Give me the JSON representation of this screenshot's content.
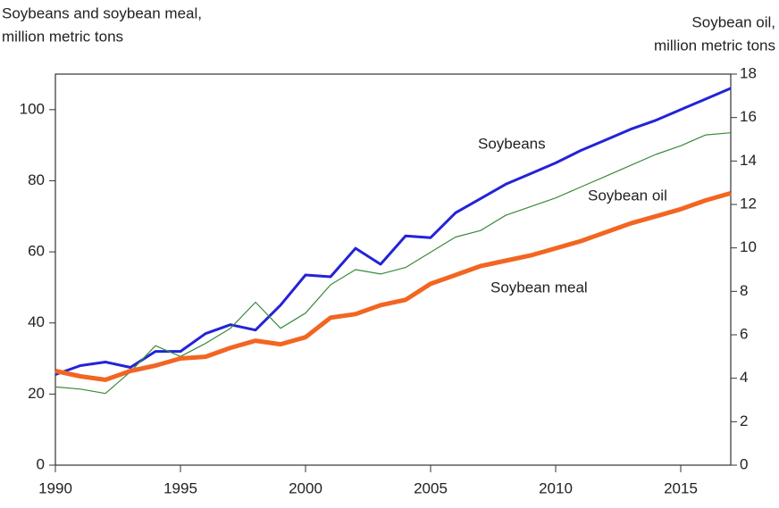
{
  "chart_data": {
    "type": "line",
    "y_label": [
      "Soybeans and soybean meal,",
      "million metric tons"
    ],
    "y2_label": [
      "Soybean oil,",
      "million metric tons"
    ],
    "x": [
      1990,
      1991,
      1992,
      1993,
      1994,
      1995,
      1996,
      1997,
      1998,
      1999,
      2000,
      2001,
      2002,
      2003,
      2004,
      2005,
      2006,
      2007,
      2008,
      2009,
      2010,
      2011,
      2012,
      2013,
      2014,
      2015,
      2016,
      2017
    ],
    "xlim": [
      1990,
      2017
    ],
    "xticks": [
      1990,
      1995,
      2000,
      2005,
      2010,
      2015
    ],
    "ylim": [
      0,
      110
    ],
    "yticks": [
      0,
      20,
      40,
      60,
      80,
      100
    ],
    "y2lim": [
      0,
      18
    ],
    "y2ticks": [
      0,
      2,
      4,
      6,
      8,
      10,
      12,
      14,
      16,
      18
    ],
    "series": [
      {
        "name": "Soybeans",
        "color": "#2323d8",
        "width": 3,
        "values": [
          25.5,
          28,
          29,
          27.5,
          32,
          32,
          37,
          39.5,
          38,
          45,
          53.5,
          53,
          61,
          56.5,
          64.5,
          64,
          71,
          75,
          79,
          82,
          85,
          88.5,
          91.5,
          94.5,
          97,
          100,
          103,
          106
        ]
      },
      {
        "name": "Soybean oil",
        "color": "#3a8a3a",
        "width": 1.2,
        "axis": "y2",
        "values": [
          3.6,
          3.5,
          3.3,
          4.3,
          5.5,
          5.0,
          5.6,
          6.3,
          7.5,
          6.3,
          7.0,
          8.3,
          9.0,
          8.8,
          9.1,
          9.8,
          10.5,
          10.8,
          11.5,
          11.9,
          12.3,
          12.8,
          13.3,
          13.8,
          14.3,
          14.7,
          15.2,
          15.3
        ]
      },
      {
        "name": "Soybean meal",
        "color": "#f26522",
        "width": 5,
        "values": [
          26.5,
          25,
          24,
          26.5,
          28,
          30,
          30.5,
          33,
          35,
          34,
          36,
          41.5,
          42.5,
          45,
          46.5,
          51,
          53.5,
          56,
          57.5,
          59,
          61,
          63,
          65.5,
          68,
          70,
          72,
          74.5,
          76.5
        ]
      }
    ]
  }
}
